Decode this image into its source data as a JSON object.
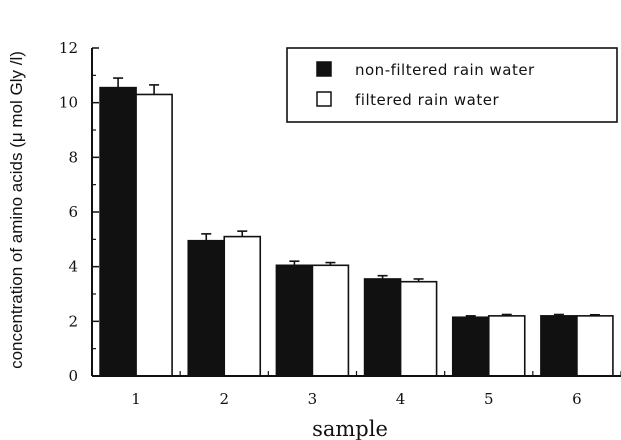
{
  "chart_data": {
    "type": "bar",
    "xlabel": "sample",
    "ylabel": "concentration of amino acids (μ mol Gly /l)",
    "categories": [
      "1",
      "2",
      "3",
      "4",
      "5",
      "6"
    ],
    "ylim": [
      0,
      12
    ],
    "yticks": [
      "0",
      "2",
      "4",
      "6",
      "8",
      "10",
      "12"
    ],
    "series": [
      {
        "name": "non-filtered rain water",
        "fill": "#111111",
        "values": [
          10.55,
          4.95,
          4.05,
          3.55,
          2.15,
          2.2
        ],
        "errors": [
          0.35,
          0.25,
          0.15,
          0.12,
          0.05,
          0.05
        ]
      },
      {
        "name": "filtered rain water",
        "fill": "#ffffff",
        "values": [
          10.3,
          5.1,
          4.05,
          3.45,
          2.2,
          2.2
        ],
        "errors": [
          0.35,
          0.2,
          0.1,
          0.1,
          0.05,
          0.04
        ]
      }
    ],
    "legend_position": "top-right",
    "grid": false
  }
}
